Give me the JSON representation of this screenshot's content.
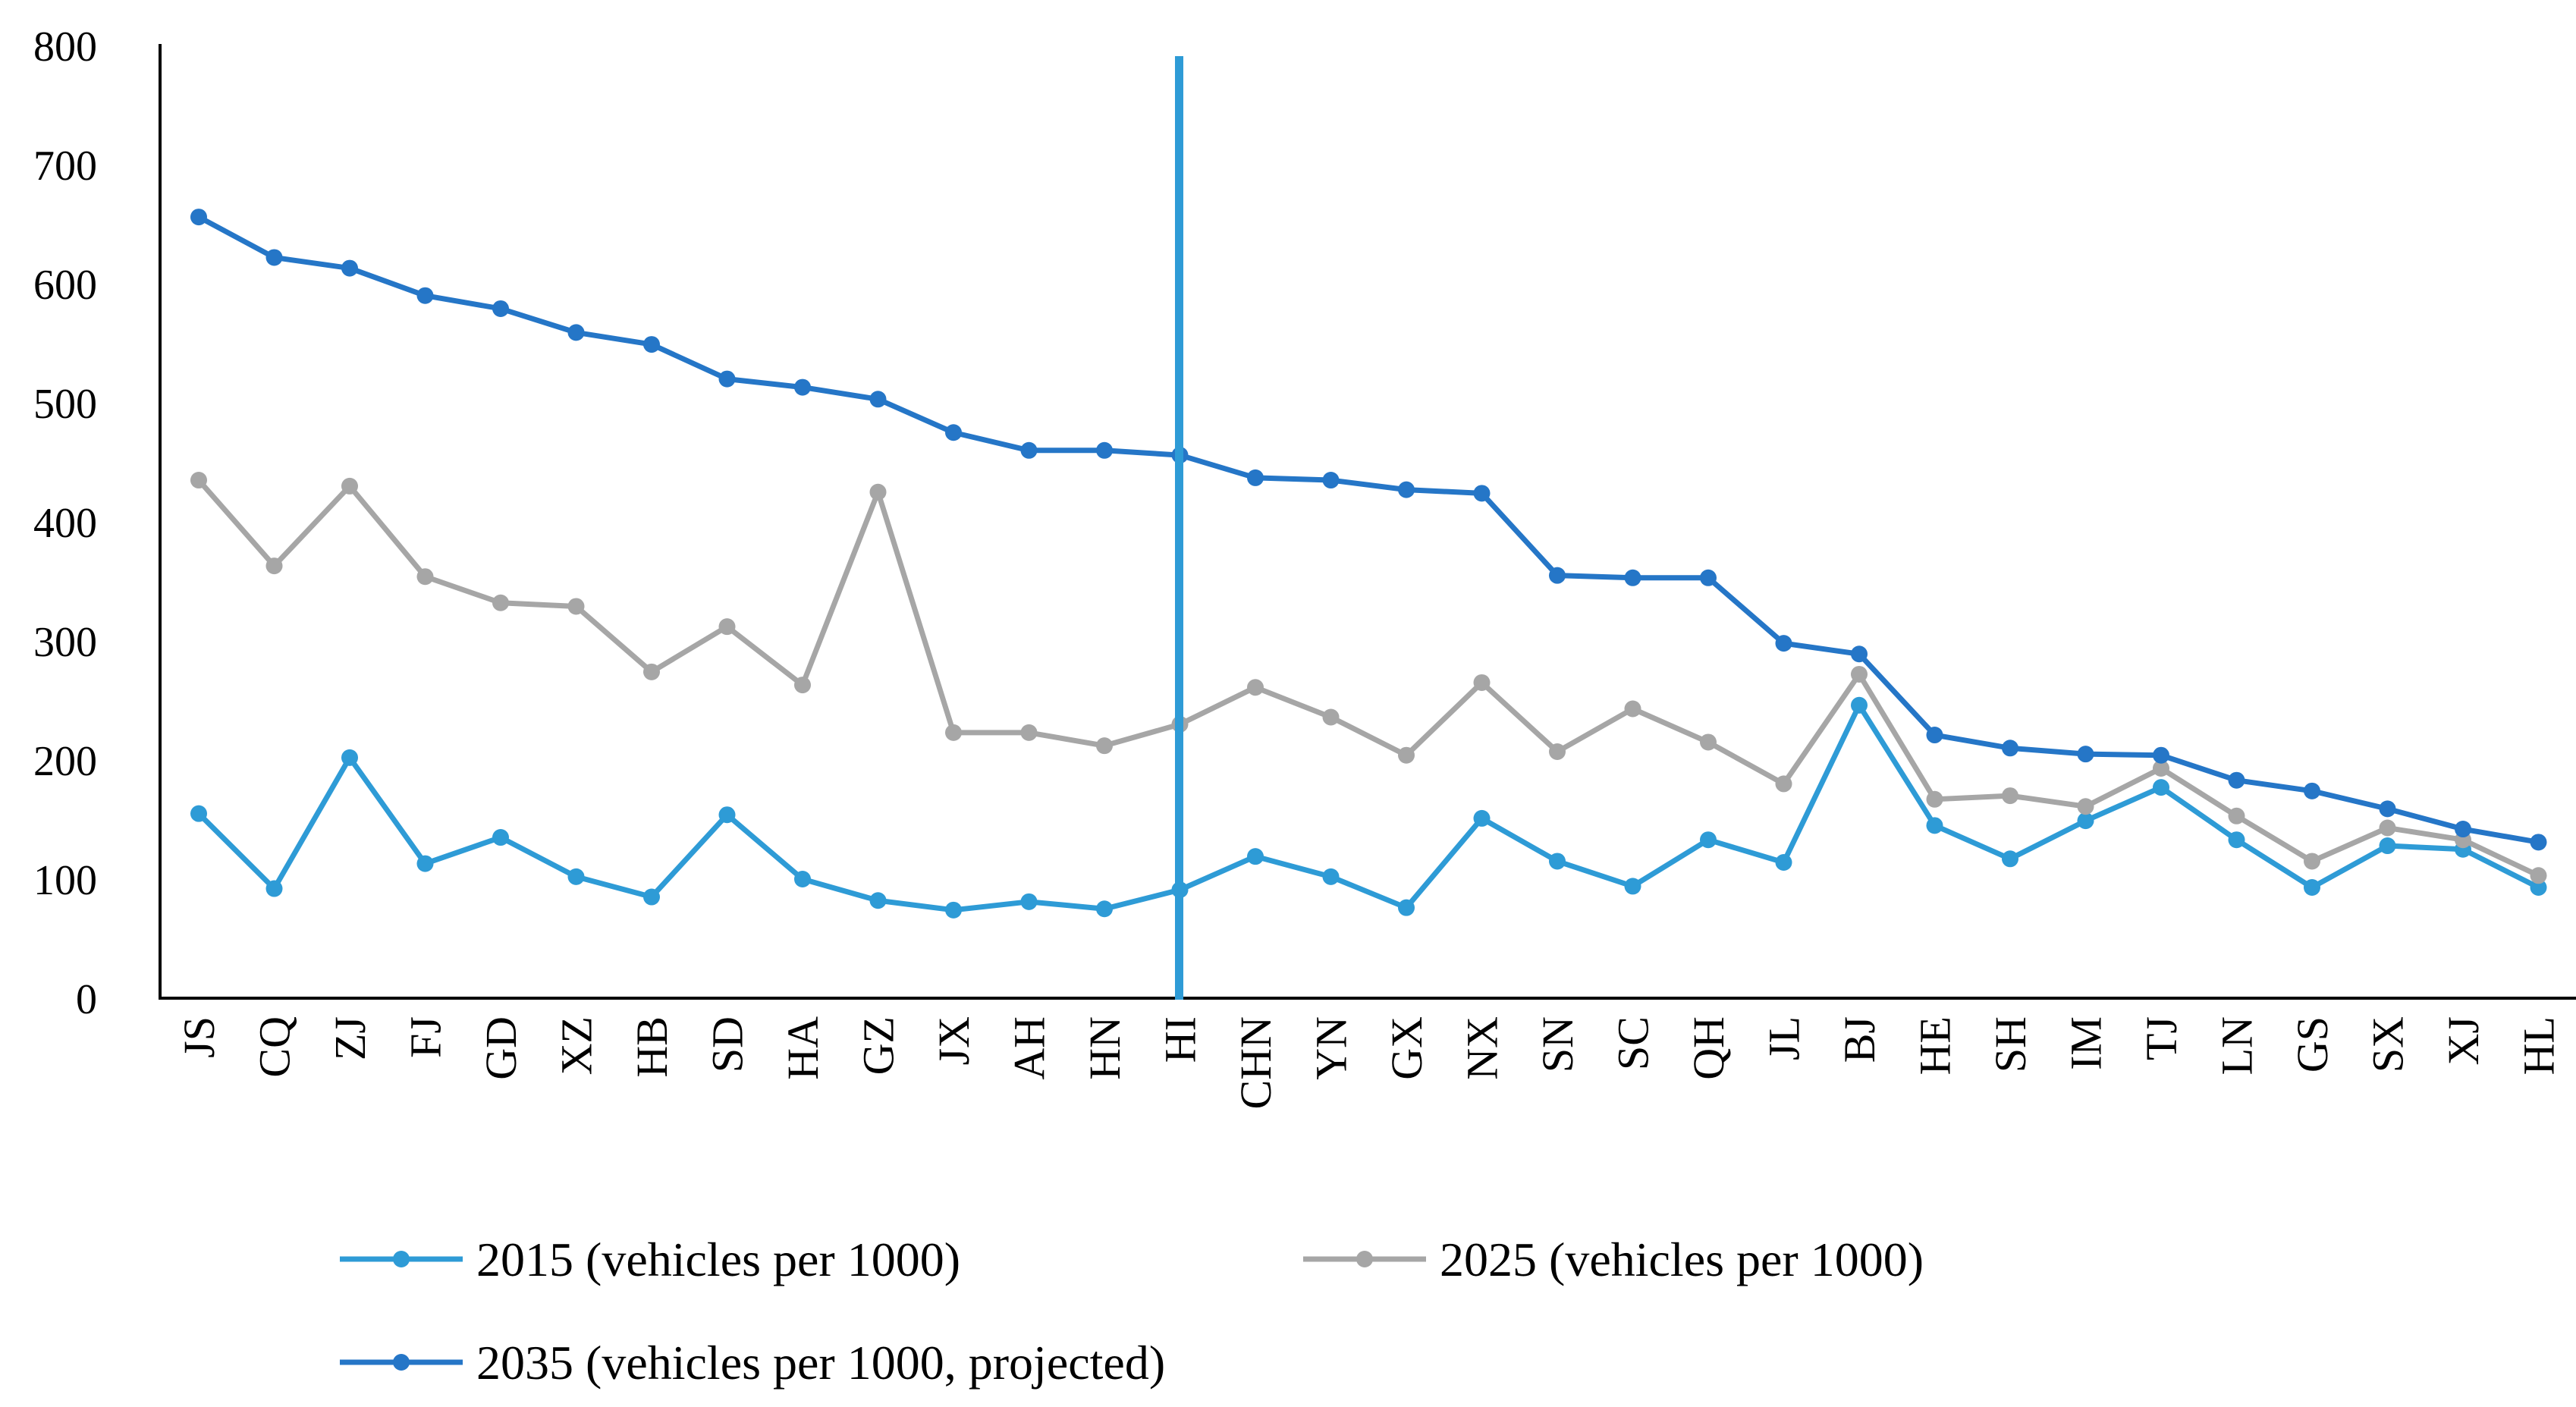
{
  "chart_data": {
    "type": "line",
    "title": "",
    "xlabel": "",
    "ylabel": "",
    "ylim": [
      0,
      800
    ],
    "yticks": [
      0,
      100,
      200,
      300,
      400,
      500,
      600,
      700,
      800
    ],
    "grid": false,
    "legend_position": "bottom",
    "categories": [
      "JS",
      "CQ",
      "ZJ",
      "FJ",
      "GD",
      "XZ",
      "HB",
      "SD",
      "HA",
      "GZ",
      "JX",
      "AH",
      "HN",
      "HI",
      "CHN",
      "YN",
      "GX",
      "NX",
      "SN",
      "SC",
      "QH",
      "JL",
      "BJ",
      "HE",
      "SH",
      "IM",
      "TJ",
      "LN",
      "GS",
      "SX",
      "XJ",
      "HL"
    ],
    "marker_line": {
      "category": "HI",
      "color": "#2E9BD6"
    },
    "series": [
      {
        "name": "2015 (vehicles per 1000)",
        "color": "#2E9BD6",
        "values": [
          155,
          92,
          202,
          113,
          135,
          102,
          85,
          154,
          100,
          82,
          74,
          81,
          75,
          91,
          119,
          102,
          76,
          151,
          115,
          94,
          133,
          114,
          246,
          145,
          117,
          149,
          177,
          133,
          93,
          128,
          125,
          93
        ]
      },
      {
        "name": "2025 (vehicles per 1000)",
        "color": "#A6A6A6",
        "values": [
          435,
          363,
          430,
          354,
          332,
          329,
          274,
          312,
          263,
          425,
          223,
          223,
          212,
          230,
          261,
          236,
          204,
          265,
          207,
          243,
          215,
          180,
          272,
          167,
          170,
          161,
          193,
          153,
          115,
          143,
          133,
          103
        ]
      },
      {
        "name": "2035 (vehicles per 1000, projected)",
        "color": "#2576C7",
        "values": [
          656,
          622,
          613,
          590,
          579,
          559,
          549,
          520,
          513,
          503,
          475,
          460,
          460,
          456,
          437,
          435,
          427,
          424,
          355,
          353,
          353,
          298,
          289,
          221,
          210,
          205,
          204,
          183,
          174,
          159,
          142,
          131
        ]
      }
    ]
  }
}
